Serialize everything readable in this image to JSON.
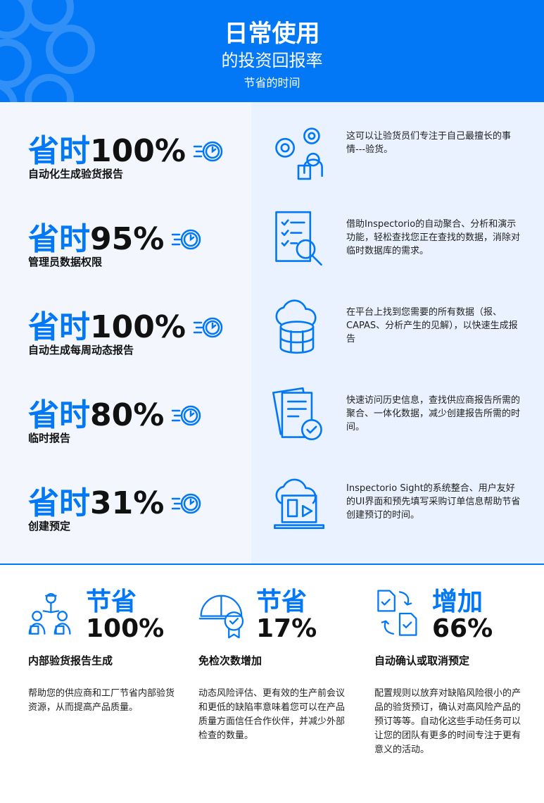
{
  "header": {
    "title": "日常使用",
    "subtitle": "的投资回报率",
    "tagline": "节省的时间"
  },
  "colors": {
    "accent": "#0378f6",
    "left_bg": "#f3f7fd",
    "right_bg": "#e9f2fe"
  },
  "rows": [
    {
      "prefix": "省时",
      "value": "100%",
      "label": "自动化生成验货报告",
      "icon": "inspector-gears-icon",
      "desc": "这可以让验货员们专注于自己最擅长的事情---验货。"
    },
    {
      "prefix": "省时",
      "value": "95%",
      "label": "管理员数据权限",
      "icon": "checklist-search-icon",
      "desc": "借助Inspectorio的自动聚合、分析和演示功能，轻松查找您正在查找的数据，消除对临时数据库的需求。"
    },
    {
      "prefix": "省时",
      "value": "100%",
      "label": "自动生成每周动态报告",
      "icon": "cloud-database-icon",
      "desc": "在平台上找到您需要的所有数据（报、CAPAS、分析产生的见解），以快速生成报告"
    },
    {
      "prefix": "省时",
      "value": "80%",
      "label": "临时报告",
      "icon": "document-check-icon",
      "desc": "快速访问历史信息，查找供应商报告所需的聚合、一体化数据，减少创建报告所需的时间。"
    },
    {
      "prefix": "省时",
      "value": "31%",
      "label": "创建预定",
      "icon": "cloud-laptop-icon",
      "desc": "Inspectorio Sight的系统整合、用户友好的UI界面和预先填写采购订单信息帮助节省创建预订的时间。"
    }
  ],
  "bottom": [
    {
      "verb": "节省",
      "value": "100%",
      "title": "内部验货报告生成",
      "icon": "team-inspectors-icon",
      "desc": "帮助您的供应商和工厂节省内部验货资源，从而提高产品质量。"
    },
    {
      "verb": "节省",
      "value": "17%",
      "title": "免检次数增加",
      "icon": "helmet-badge-icon",
      "desc": "动态风险评估、更有效的生产前会议和更低的缺陷率意味着您可以在产品质量方面信任合作伙伴，并减少外部检查的数量。"
    },
    {
      "verb": "增加",
      "value": "66%",
      "title": "自动确认或取消预定",
      "icon": "documents-cycle-icon",
      "desc": "配置规则以放弃对缺陷风险很小的产品的验货预订，确认对高风险产品的预订等等。自动化这些手动任务可以让您的团队有更多的时间专注于更有意义的活动。"
    }
  ]
}
